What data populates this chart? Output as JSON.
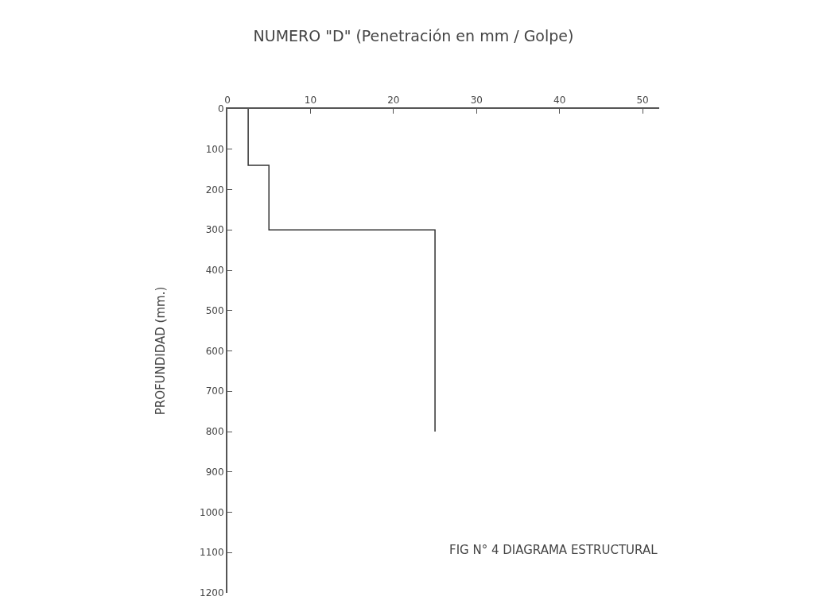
{
  "chart_data": {
    "type": "line",
    "title": "NUMERO \"D\" (Penetración en mm / Golpe)",
    "ylabel": "PROFUNDIDAD (mm.)",
    "annotations": [
      "FIG N° 4 DIAGRAMA ESTRUCTURAL"
    ],
    "series": [
      {
        "color": "#333333",
        "x": [
          2.5,
          2.5,
          5,
          5,
          25,
          25
        ],
        "values": [
          0,
          140,
          140,
          300,
          300,
          800
        ]
      }
    ],
    "xlim": [
      0,
      52
    ],
    "xticks": [
      0,
      10,
      20,
      30,
      40,
      50
    ],
    "ylim": [
      1200,
      0
    ],
    "yticks": [
      0,
      100,
      200,
      300,
      400,
      500,
      600,
      700,
      800,
      900,
      1000,
      1100,
      1200
    ],
    "marker": "none",
    "line_style": "solid"
  }
}
